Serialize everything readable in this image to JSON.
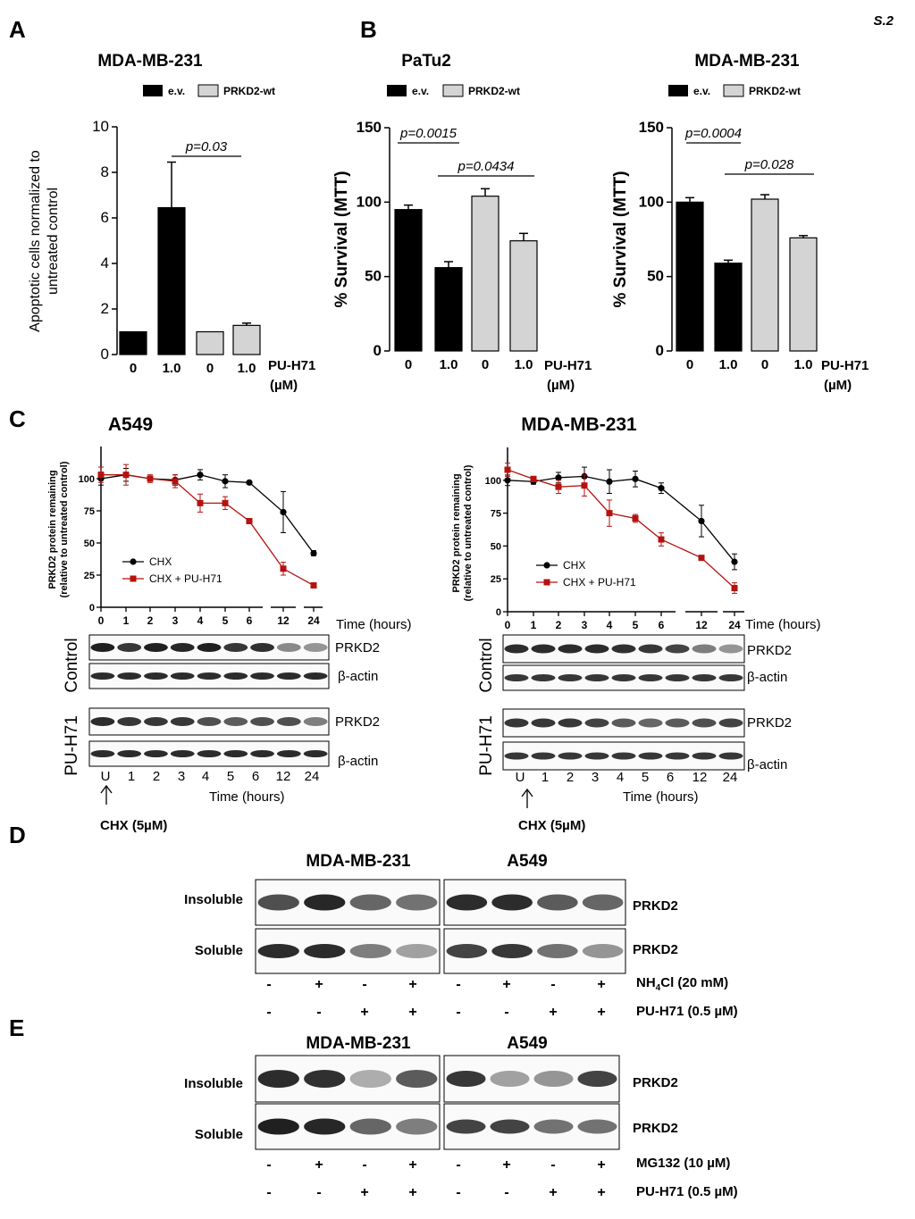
{
  "page_label": "S.2",
  "panel_labels": {
    "A": "A",
    "B": "B",
    "C": "C",
    "D": "D",
    "E": "E"
  },
  "panelA": {
    "title": "MDA-MB-231",
    "ylabel_line1": "Apoptotic cells normalized to",
    "ylabel_line2": "untreated control",
    "treatment_label": "PU-H71",
    "treatment_unit": "(µM)",
    "p_value": "p=0.03"
  },
  "panelB": {
    "left_title": "PaTu2",
    "right_title": "MDA-MB-231",
    "ylabel": "% Survival (MTT)",
    "left_p1": "p=0.0015",
    "left_p2": "p=0.0434",
    "right_p1": "p=0.0004",
    "right_p2": "p=0.028",
    "treatment_label": "PU-H71",
    "treatment_unit": "(µM)"
  },
  "legend": {
    "ev": "e.v.",
    "wt": "PRKD2-wt"
  },
  "colors": {
    "ev": "#000000",
    "wt": "#d4d4d4",
    "chx": "#000000",
    "chx_pu": "#b5120f"
  },
  "panelC": {
    "left_title": "A549",
    "right_title": "MDA-MB-231",
    "ylabel_line1": "PRKD2 protein remaining",
    "ylabel_line2": "(relative to untreated control)",
    "time_label": "Time (hours)",
    "legend_chx": "CHX",
    "legend_chx_pu": "CHX + PU-H71",
    "row_control": "Control",
    "row_pu": "PU-H71",
    "band_prkd2": "PRKD2",
    "band_actin": "β-actin",
    "lane_labels": [
      "U",
      "1",
      "2",
      "3",
      "4",
      "5",
      "6",
      "12",
      "24"
    ],
    "chx_note": "CHX (5µM)"
  },
  "panelD": {
    "cell1": "MDA-MB-231",
    "cell2": "A549",
    "row1": "Insoluble",
    "row2": "Soluble",
    "band": "PRKD2",
    "treat1": "NH4Cl (20 mM)",
    "treat1_pre": "NH",
    "treat1_sub": "4",
    "treat1_post": "Cl (20 mM)",
    "treat2": "PU-H71 (0.5 µM)",
    "signs1": [
      "-",
      "+",
      "-",
      "+",
      "-",
      "+",
      "-",
      "+"
    ],
    "signs2": [
      "-",
      "-",
      "+",
      "+",
      "-",
      "-",
      "+",
      "+"
    ]
  },
  "panelE": {
    "cell1": "MDA-MB-231",
    "cell2": "A549",
    "row1": "Insoluble",
    "row2": "Soluble",
    "band": "PRKD2",
    "treat1": "MG132 (10 µM)",
    "treat2": "PU-H71 (0.5 µM)",
    "signs1": [
      "-",
      "+",
      "-",
      "+",
      "-",
      "+",
      "-",
      "+"
    ],
    "signs2": [
      "-",
      "-",
      "+",
      "+",
      "-",
      "-",
      "+",
      "+"
    ]
  },
  "chart_data": [
    {
      "id": "A",
      "type": "bar",
      "title": "MDA-MB-231",
      "ylabel": "Apoptotic cells normalized to untreated control",
      "categories": [
        "0",
        "1.0",
        "0",
        "1.0"
      ],
      "groups": [
        "e.v.",
        "e.v.",
        "PRKD2-wt",
        "PRKD2-wt"
      ],
      "values": [
        1.0,
        6.45,
        1.0,
        1.28
      ],
      "errors": [
        0,
        2.0,
        0,
        0.1
      ],
      "ylim": [
        0,
        10
      ],
      "yticks": [
        0,
        2,
        4,
        6,
        8,
        10
      ],
      "annotations": [
        {
          "text": "p=0.03",
          "from": 1,
          "to": 3
        }
      ]
    },
    {
      "id": "B-PaTu2",
      "type": "bar",
      "title": "PaTu2",
      "ylabel": "% Survival (MTT)",
      "categories": [
        "0",
        "1.0",
        "0",
        "1.0"
      ],
      "groups": [
        "e.v.",
        "e.v.",
        "PRKD2-wt",
        "PRKD2-wt"
      ],
      "values": [
        95,
        56,
        104,
        74
      ],
      "errors": [
        3,
        4,
        5,
        5
      ],
      "ylim": [
        0,
        150
      ],
      "yticks": [
        0,
        50,
        100,
        150
      ],
      "annotations": [
        {
          "text": "p=0.0015",
          "from": 0,
          "to": 1
        },
        {
          "text": "p=0.0434",
          "from": 1,
          "to": 3
        }
      ]
    },
    {
      "id": "B-MDA-MB-231",
      "type": "bar",
      "title": "MDA-MB-231",
      "ylabel": "% Survival (MTT)",
      "categories": [
        "0",
        "1.0",
        "0",
        "1.0"
      ],
      "groups": [
        "e.v.",
        "e.v.",
        "PRKD2-wt",
        "PRKD2-wt"
      ],
      "values": [
        100,
        59,
        102,
        76
      ],
      "errors": [
        3,
        2,
        3,
        1.5
      ],
      "ylim": [
        0,
        150
      ],
      "yticks": [
        0,
        50,
        100,
        150
      ],
      "annotations": [
        {
          "text": "p=0.0004",
          "from": 0,
          "to": 1
        },
        {
          "text": "p=0.028",
          "from": 1,
          "to": 3
        }
      ]
    },
    {
      "id": "C-A549",
      "type": "line",
      "title": "A549",
      "xlabel": "Time (hours)",
      "ylabel": "PRKD2 protein remaining (relative to untreated control)",
      "x": [
        "0",
        "1",
        "2",
        "3",
        "4",
        "5",
        "6",
        "12",
        "24"
      ],
      "ylim": [
        0,
        125
      ],
      "yticks": [
        0,
        25,
        50,
        75,
        100
      ],
      "series": [
        {
          "name": "CHX",
          "values": [
            100,
            103,
            100,
            99,
            103,
            98,
            97,
            74,
            42
          ],
          "errors": [
            5,
            5,
            2,
            4,
            4,
            5,
            1,
            16,
            2
          ]
        },
        {
          "name": "CHX + PU-H71",
          "values": [
            103,
            103,
            100,
            98,
            81,
            81,
            67,
            30,
            17
          ],
          "errors": [
            6,
            8,
            3,
            5,
            7,
            5,
            1,
            5,
            1
          ]
        }
      ]
    },
    {
      "id": "C-MDA-MB-231",
      "type": "line",
      "title": "MDA-MB-231",
      "xlabel": "Time (hours)",
      "ylabel": "PRKD2 protein remaining (relative to untreated control)",
      "x": [
        "0",
        "1",
        "2",
        "3",
        "4",
        "5",
        "6",
        "12",
        "24"
      ],
      "ylim": [
        0,
        125
      ],
      "yticks": [
        0,
        25,
        50,
        75,
        100
      ],
      "series": [
        {
          "name": "CHX",
          "values": [
            100,
            99,
            102,
            103,
            99,
            101,
            94,
            69,
            38
          ],
          "errors": [
            4,
            2,
            4,
            7,
            9,
            6,
            4,
            12,
            6
          ]
        },
        {
          "name": "CHX + PU-H71",
          "values": [
            108,
            101,
            95,
            96,
            75,
            71,
            55,
            41,
            18
          ],
          "errors": [
            5,
            2,
            5,
            8,
            10,
            3,
            5,
            1,
            4
          ]
        }
      ]
    }
  ]
}
